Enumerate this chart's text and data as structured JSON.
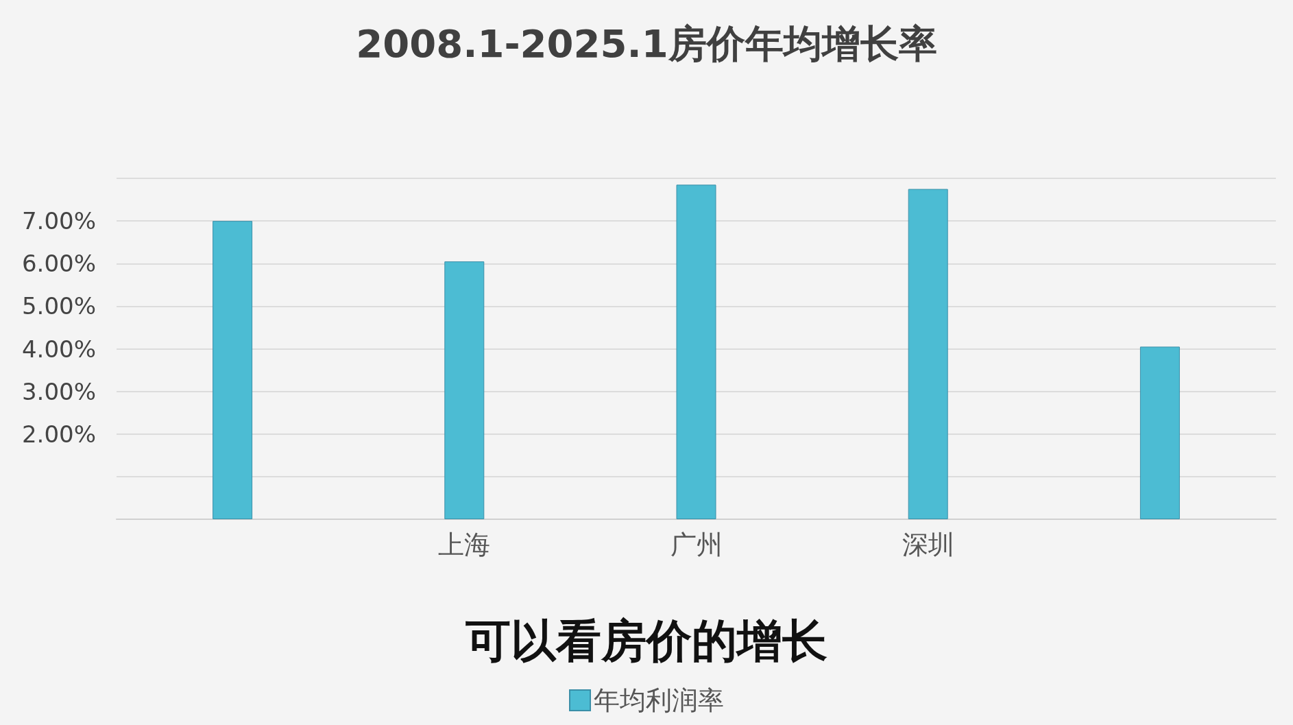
{
  "chart_data": {
    "type": "bar",
    "title": "2008.1-2025.1房价年均增长率",
    "categories": [
      null,
      "上海",
      "广州",
      "深圳",
      null
    ],
    "series": [
      {
        "name": "年均利润率",
        "color": "#4cbcd3",
        "values": [
          7.0,
          6.05,
          7.85,
          7.75,
          4.05
        ]
      }
    ],
    "ylim": [
      0,
      8
    ],
    "yticks": [
      {
        "value": 0,
        "label": null
      },
      {
        "value": 1,
        "label": null
      },
      {
        "value": 2,
        "label": "2.00%"
      },
      {
        "value": 3,
        "label": "3.00%"
      },
      {
        "value": 4,
        "label": "4.00%"
      },
      {
        "value": 5,
        "label": "5.00%"
      },
      {
        "value": 6,
        "label": "6.00%"
      },
      {
        "value": 7,
        "label": "7.00%"
      },
      {
        "value": 8,
        "label": null
      }
    ],
    "grid": "y",
    "legend": "bottom",
    "annotations": [
      "可以看房价的增长"
    ]
  }
}
